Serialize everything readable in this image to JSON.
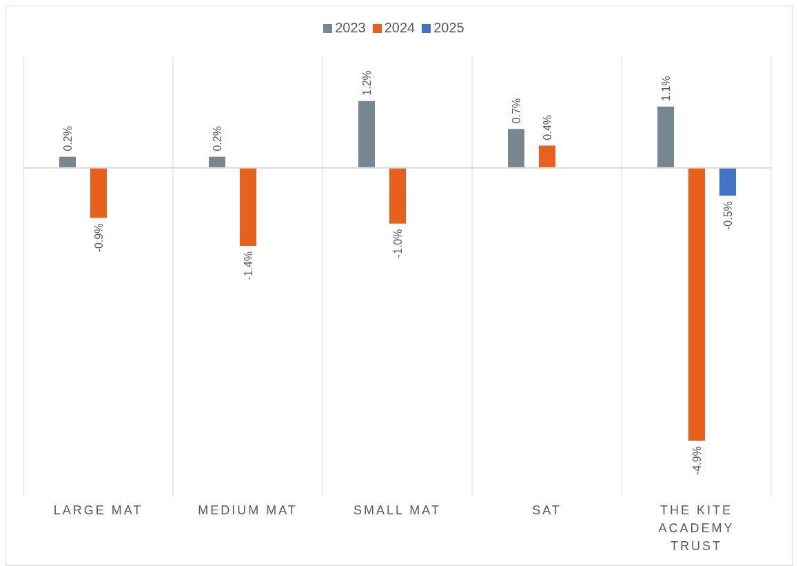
{
  "chart_data": {
    "type": "bar",
    "categories": [
      "LARGE MAT",
      "MEDIUM MAT",
      "SMALL MAT",
      "SAT",
      "THE KITE ACADEMY TRUST"
    ],
    "series": [
      {
        "name": "2023",
        "color": "#78868f",
        "values": [
          0.2,
          0.2,
          1.2,
          0.7,
          1.1
        ],
        "value_labels": [
          "0.2%",
          "0.2%",
          "1.2%",
          "0.7%",
          "1.1%"
        ]
      },
      {
        "name": "2024",
        "color": "#e8601c",
        "values": [
          -0.9,
          -1.4,
          -1.0,
          0.4,
          -4.9
        ],
        "value_labels": [
          "-0.9%",
          "-1.4%",
          "-1.0%",
          "0.4%",
          "-4.9%"
        ]
      },
      {
        "name": "2025",
        "color": "#4472c4",
        "values": [
          null,
          null,
          null,
          null,
          -0.5
        ],
        "value_labels": [
          null,
          null,
          null,
          null,
          "-0.5%"
        ]
      }
    ],
    "grid": "x",
    "legend": "top",
    "tick_labels": "x"
  }
}
